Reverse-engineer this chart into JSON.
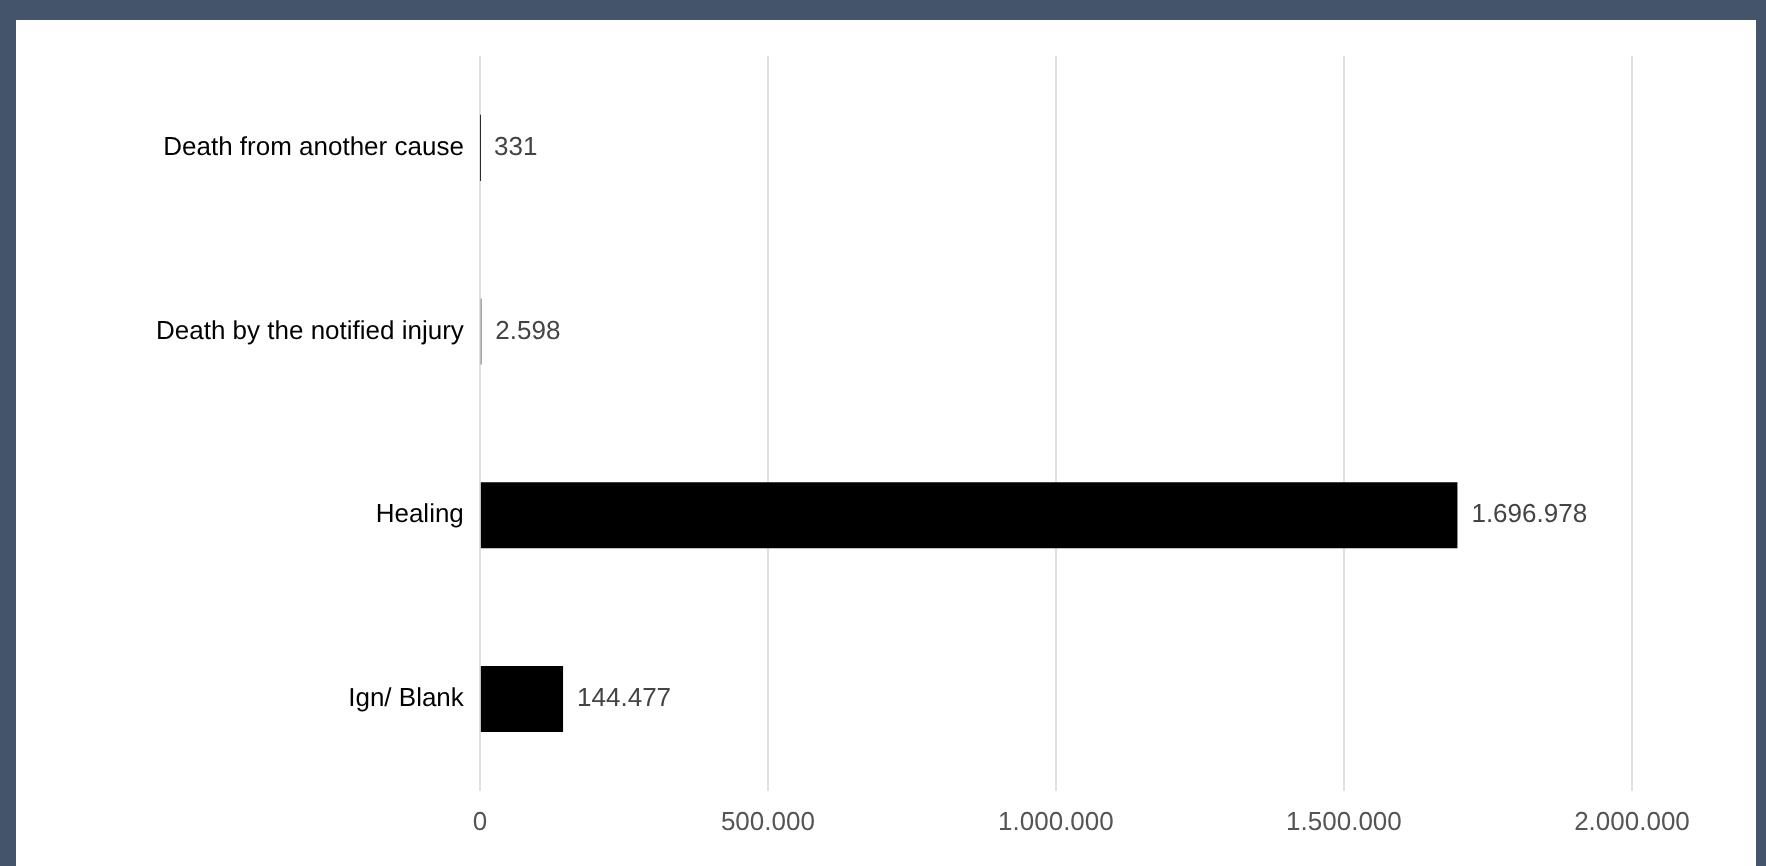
{
  "chart_data": {
    "type": "bar",
    "orientation": "horizontal",
    "categories": [
      "Death from another cause",
      "Death by the notified injury",
      "Healing",
      "Ign/ Blank"
    ],
    "values": [
      331,
      2598,
      1696978,
      144477
    ],
    "color": "#000000",
    "value_labels": [
      "331",
      "2.598",
      "1.696.978",
      "144.477"
    ],
    "xlim": [
      0,
      2000000
    ],
    "xticks": [
      0,
      {
        "value": 500000,
        "label": "500.000"
      },
      {
        "value": 1000000,
        "label": "1.000.000"
      },
      {
        "value": 1500000,
        "label": "1.500.000"
      },
      {
        "value": 2000000,
        "label": "2.000.000"
      }
    ],
    "grid": "x"
  }
}
